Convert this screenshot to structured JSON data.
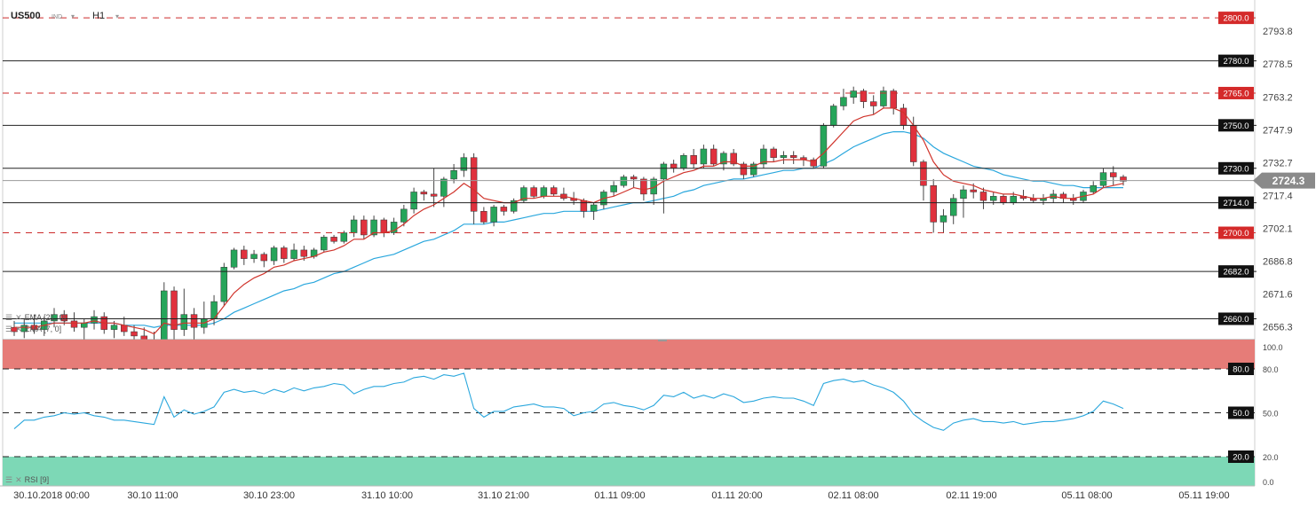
{
  "header": {
    "symbol": "US500",
    "instrument_type": "IND",
    "timeframe": "H1",
    "caret": "▾"
  },
  "indicators": {
    "ema1": "EMA [21, 0]",
    "ema2": "EMA [7, 0]",
    "rsi": "RSI [9]"
  },
  "colors": {
    "bull": "#26a55a",
    "bear": "#e0313d",
    "ema_fast": "#d0342c",
    "ema_slow": "#2aa7dd",
    "rsi_line": "#2aa7dd",
    "overbought_zone": "#e67c78",
    "oversold_zone": "#7dd8b6",
    "level_solid": "#222222",
    "level_dashed": "#cc2a2a",
    "current_tag": "#8a8a8a"
  },
  "chart_data": [
    {
      "type": "candlestick",
      "title": "US500 IND H1",
      "ylim": [
        2650,
        2805
      ],
      "price_ticks": [
        "2793.8",
        "2778.5",
        "2763.2",
        "2747.9",
        "2732.7",
        "2717.4",
        "2702.1",
        "2686.8",
        "2671.6",
        "2656.3"
      ],
      "x_ticks": [
        "30.10.2018  00:00",
        "30.10  11:00",
        "30.10  23:00",
        "31.10  10:00",
        "31.10  21:00",
        "01.11  09:00",
        "01.11  20:00",
        "02.11  08:00",
        "02.11  19:00",
        "05.11  08:00",
        "05.11  19:00"
      ],
      "current_price": "2724.3",
      "levels": [
        {
          "value": 2800.0,
          "label": "2800.0",
          "style": "dashed"
        },
        {
          "value": 2780.0,
          "label": "2780.0",
          "style": "solid"
        },
        {
          "value": 2765.0,
          "label": "2765.0",
          "style": "dashed"
        },
        {
          "value": 2750.0,
          "label": "2750.0",
          "style": "solid"
        },
        {
          "value": 2730.0,
          "label": "2730.0",
          "style": "solid"
        },
        {
          "value": 2714.0,
          "label": "2714.0",
          "style": "solid"
        },
        {
          "value": 2700.0,
          "label": "2700.0",
          "style": "dashed"
        },
        {
          "value": 2682.0,
          "label": "2682.0",
          "style": "solid"
        },
        {
          "value": 2660.0,
          "label": "2660.0",
          "style": "solid"
        }
      ],
      "candles": [
        [
          2656,
          2659,
          2652,
          2654
        ],
        [
          2654,
          2660,
          2651,
          2657
        ],
        [
          2657,
          2662,
          2653,
          2655
        ],
        [
          2655,
          2661,
          2652,
          2659
        ],
        [
          2659,
          2665,
          2656,
          2662
        ],
        [
          2662,
          2664,
          2657,
          2659
        ],
        [
          2659,
          2663,
          2654,
          2656
        ],
        [
          2656,
          2660,
          2650,
          2658
        ],
        [
          2658,
          2664,
          2655,
          2661
        ],
        [
          2661,
          2663,
          2653,
          2655
        ],
        [
          2655,
          2659,
          2651,
          2657
        ],
        [
          2657,
          2661,
          2652,
          2654
        ],
        [
          2654,
          2657,
          2650,
          2652
        ],
        [
          2652,
          2656,
          2648,
          2650
        ],
        [
          2650,
          2654,
          2645,
          2648
        ],
        [
          2648,
          2677,
          2646,
          2673
        ],
        [
          2673,
          2675,
          2650,
          2655
        ],
        [
          2655,
          2674,
          2652,
          2662
        ],
        [
          2662,
          2665,
          2650,
          2656
        ],
        [
          2656,
          2668,
          2653,
          2660
        ],
        [
          2660,
          2671,
          2657,
          2668
        ],
        [
          2668,
          2686,
          2666,
          2684
        ],
        [
          2684,
          2693,
          2683,
          2692
        ],
        [
          2692,
          2694,
          2685,
          2688
        ],
        [
          2688,
          2692,
          2686,
          2690
        ],
        [
          2690,
          2691,
          2684,
          2687
        ],
        [
          2687,
          2694,
          2685,
          2693
        ],
        [
          2693,
          2694,
          2686,
          2688
        ],
        [
          2688,
          2695,
          2687,
          2692
        ],
        [
          2692,
          2694,
          2687,
          2689
        ],
        [
          2689,
          2693,
          2688,
          2692
        ],
        [
          2692,
          2699,
          2691,
          2698
        ],
        [
          2698,
          2699,
          2695,
          2696
        ],
        [
          2696,
          2701,
          2695,
          2700
        ],
        [
          2700,
          2708,
          2698,
          2706
        ],
        [
          2706,
          2708,
          2697,
          2699
        ],
        [
          2699,
          2708,
          2698,
          2706
        ],
        [
          2706,
          2707,
          2698,
          2700
        ],
        [
          2700,
          2707,
          2699,
          2705
        ],
        [
          2705,
          2713,
          2703,
          2711
        ],
        [
          2711,
          2721,
          2709,
          2719
        ],
        [
          2719,
          2720,
          2715,
          2718
        ],
        [
          2718,
          2730,
          2712,
          2717
        ],
        [
          2717,
          2726,
          2712,
          2725
        ],
        [
          2725,
          2732,
          2723,
          2729
        ],
        [
          2729,
          2737,
          2726,
          2735
        ],
        [
          2735,
          2737,
          2704,
          2710
        ],
        [
          2710,
          2712,
          2704,
          2705
        ],
        [
          2705,
          2713,
          2703,
          2712
        ],
        [
          2712,
          2713,
          2708,
          2710
        ],
        [
          2710,
          2716,
          2709,
          2715
        ],
        [
          2715,
          2722,
          2714,
          2721
        ],
        [
          2721,
          2722,
          2716,
          2717
        ],
        [
          2717,
          2722,
          2716,
          2721
        ],
        [
          2721,
          2722,
          2717,
          2718
        ],
        [
          2718,
          2721,
          2715,
          2716
        ],
        [
          2716,
          2719,
          2713,
          2715
        ],
        [
          2715,
          2716,
          2707,
          2710
        ],
        [
          2710,
          2714,
          2706,
          2713
        ],
        [
          2713,
          2720,
          2711,
          2719
        ],
        [
          2719,
          2724,
          2717,
          2722
        ],
        [
          2722,
          2727,
          2721,
          2726
        ],
        [
          2726,
          2727,
          2721,
          2725
        ],
        [
          2725,
          2726,
          2715,
          2718
        ],
        [
          2718,
          2726,
          2713,
          2725
        ],
        [
          2725,
          2733,
          2709,
          2732
        ],
        [
          2732,
          2734,
          2728,
          2730
        ],
        [
          2730,
          2737,
          2729,
          2736
        ],
        [
          2736,
          2739,
          2730,
          2732
        ],
        [
          2732,
          2741,
          2730,
          2739
        ],
        [
          2739,
          2741,
          2731,
          2732
        ],
        [
          2732,
          2738,
          2729,
          2737
        ],
        [
          2737,
          2739,
          2731,
          2732
        ],
        [
          2732,
          2733,
          2725,
          2727
        ],
        [
          2727,
          2733,
          2726,
          2732
        ],
        [
          2732,
          2741,
          2730,
          2739
        ],
        [
          2739,
          2740,
          2733,
          2735
        ],
        [
          2735,
          2738,
          2732,
          2736
        ],
        [
          2736,
          2738,
          2732,
          2735
        ],
        [
          2735,
          2736,
          2731,
          2734
        ],
        [
          2734,
          2735,
          2730,
          2731
        ],
        [
          2731,
          2751,
          2730,
          2750
        ],
        [
          2750,
          2760,
          2749,
          2759
        ],
        [
          2759,
          2767,
          2757,
          2763
        ],
        [
          2763,
          2768,
          2760,
          2766
        ],
        [
          2766,
          2767,
          2758,
          2761
        ],
        [
          2761,
          2764,
          2755,
          2759
        ],
        [
          2759,
          2768,
          2758,
          2766
        ],
        [
          2766,
          2767,
          2755,
          2758
        ],
        [
          2758,
          2760,
          2748,
          2750
        ],
        [
          2750,
          2754,
          2731,
          2733
        ],
        [
          2733,
          2734,
          2715,
          2722
        ],
        [
          2722,
          2725,
          2700,
          2705
        ],
        [
          2705,
          2711,
          2700,
          2708
        ],
        [
          2708,
          2718,
          2704,
          2716
        ],
        [
          2716,
          2722,
          2707,
          2720
        ],
        [
          2720,
          2723,
          2716,
          2719
        ],
        [
          2719,
          2721,
          2711,
          2715
        ],
        [
          2715,
          2719,
          2713,
          2717
        ],
        [
          2717,
          2718,
          2713,
          2714
        ],
        [
          2714,
          2719,
          2713,
          2717
        ],
        [
          2717,
          2720,
          2715,
          2716
        ],
        [
          2716,
          2718,
          2714,
          2715
        ],
        [
          2715,
          2718,
          2713,
          2716
        ],
        [
          2716,
          2720,
          2714,
          2718
        ],
        [
          2718,
          2719,
          2714,
          2716
        ],
        [
          2716,
          2718,
          2713,
          2715
        ],
        [
          2715,
          2720,
          2714,
          2719
        ],
        [
          2719,
          2724,
          2718,
          2722
        ],
        [
          2722,
          2730,
          2721,
          2728
        ],
        [
          2728,
          2731,
          2722,
          2726
        ],
        [
          2726,
          2727,
          2722,
          2724
        ]
      ],
      "ema_fast": [
        2656,
        2656,
        2656,
        2657,
        2658,
        2658,
        2658,
        2658,
        2659,
        2658,
        2658,
        2657,
        2656,
        2655,
        2653,
        2658,
        2657,
        2658,
        2658,
        2658,
        2660,
        2666,
        2672,
        2676,
        2679,
        2681,
        2684,
        2685,
        2687,
        2688,
        2689,
        2691,
        2692,
        2694,
        2697,
        2697,
        2700,
        2700,
        2701,
        2704,
        2708,
        2711,
        2713,
        2716,
        2719,
        2723,
        2720,
        2716,
        2715,
        2714,
        2714,
        2716,
        2716,
        2717,
        2717,
        2717,
        2716,
        2715,
        2714,
        2716,
        2717,
        2719,
        2721,
        2720,
        2721,
        2724,
        2726,
        2728,
        2729,
        2731,
        2731,
        2733,
        2733,
        2731,
        2731,
        2733,
        2733,
        2734,
        2734,
        2734,
        2733,
        2737,
        2742,
        2747,
        2752,
        2754,
        2755,
        2758,
        2758,
        2756,
        2750,
        2743,
        2733,
        2727,
        2724,
        2723,
        2722,
        2720,
        2719,
        2718,
        2718,
        2717,
        2716,
        2716,
        2717,
        2716,
        2716,
        2717,
        2718,
        2721,
        2722,
        2723
      ],
      "ema_slow": [
        2658,
        2658,
        2658,
        2658,
        2658,
        2658,
        2658,
        2658,
        2658,
        2658,
        2658,
        2657,
        2657,
        2657,
        2656,
        2657,
        2657,
        2657,
        2657,
        2657,
        2658,
        2660,
        2663,
        2665,
        2667,
        2669,
        2671,
        2673,
        2674,
        2676,
        2677,
        2679,
        2681,
        2682,
        2684,
        2686,
        2688,
        2689,
        2690,
        2692,
        2694,
        2696,
        2697,
        2699,
        2701,
        2704,
        2704,
        2704,
        2705,
        2705,
        2706,
        2707,
        2708,
        2709,
        2709,
        2710,
        2710,
        2710,
        2710,
        2711,
        2712,
        2713,
        2714,
        2714,
        2715,
        2716,
        2717,
        2719,
        2720,
        2722,
        2723,
        2724,
        2725,
        2725,
        2726,
        2727,
        2728,
        2729,
        2729,
        2730,
        2730,
        2732,
        2734,
        2737,
        2740,
        2742,
        2744,
        2746,
        2747,
        2747,
        2746,
        2744,
        2740,
        2737,
        2735,
        2733,
        2731,
        2730,
        2729,
        2727,
        2726,
        2725,
        2724,
        2724,
        2723,
        2722,
        2722,
        2721,
        2721,
        2721,
        2721,
        2721
      ]
    },
    {
      "type": "line",
      "title": "RSI [9]",
      "ylim": [
        0,
        100
      ],
      "ticks": [
        "100.0",
        "80.0",
        "50.0",
        "20.0",
        "0.0"
      ],
      "levels": [
        {
          "value": 80.0,
          "label": "80.0"
        },
        {
          "value": 50.0,
          "label": "50.0"
        },
        {
          "value": 20.0,
          "label": "20.0"
        }
      ],
      "values": [
        39,
        45,
        45,
        47,
        48,
        50,
        49,
        50,
        48,
        47,
        45,
        45,
        44,
        43,
        42,
        61,
        47,
        52,
        49,
        51,
        54,
        64,
        66,
        64,
        65,
        63,
        66,
        64,
        67,
        65,
        67,
        68,
        70,
        69,
        63,
        66,
        68,
        68,
        70,
        71,
        74,
        75,
        73,
        76,
        75,
        77,
        53,
        47,
        51,
        51,
        54,
        55,
        56,
        54,
        54,
        53,
        48,
        50,
        51,
        56,
        57,
        55,
        54,
        52,
        55,
        62,
        61,
        64,
        60,
        62,
        60,
        63,
        61,
        57,
        58,
        60,
        61,
        60,
        60,
        58,
        55,
        70,
        72,
        73,
        71,
        72,
        69,
        67,
        64,
        58,
        49,
        44,
        40,
        38,
        43,
        45,
        46,
        44,
        44,
        43,
        44,
        42,
        43,
        44,
        44,
        45,
        46,
        48,
        51,
        58,
        56,
        53
      ]
    }
  ]
}
